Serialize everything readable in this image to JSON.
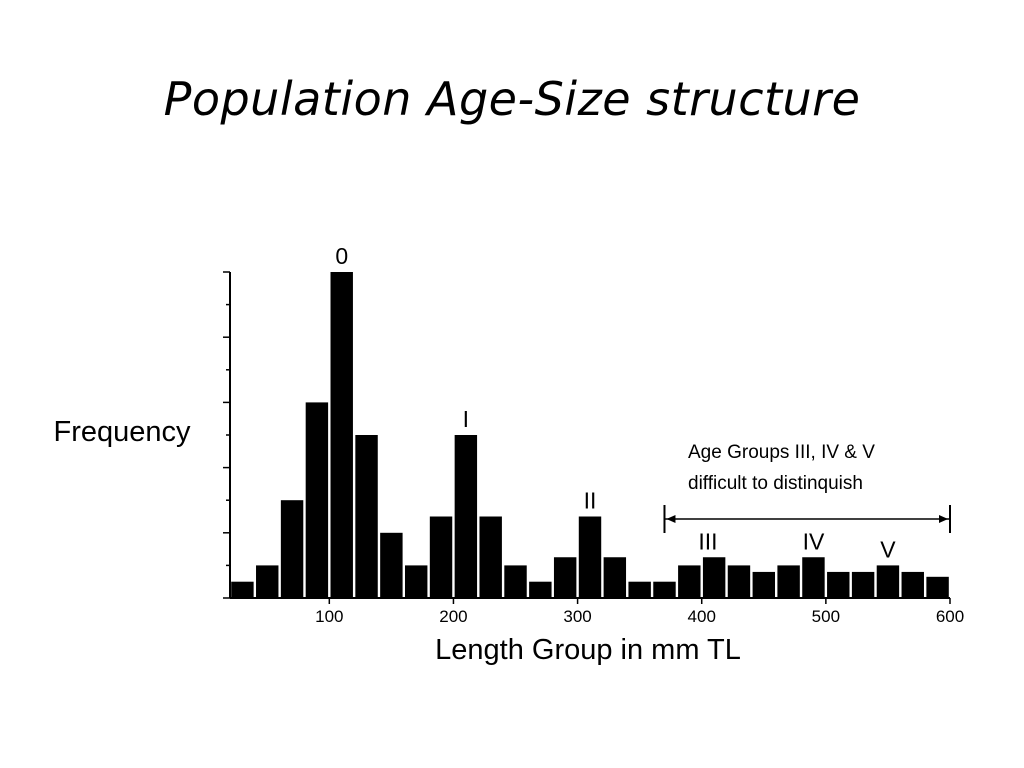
{
  "title": "Population Age-Size structure",
  "chart_data": {
    "type": "bar",
    "xlabel": "Length Group in mm TL",
    "ylabel": "Frequency",
    "xlim": [
      20,
      600
    ],
    "ylim": [
      0,
      20
    ],
    "x_ticks": [
      100,
      200,
      300,
      400,
      500,
      600
    ],
    "x": [
      30,
      50,
      70,
      90,
      110,
      130,
      150,
      170,
      190,
      210,
      230,
      250,
      270,
      290,
      310,
      330,
      350,
      370,
      390,
      410,
      430,
      450,
      470,
      490,
      510,
      530,
      550,
      570,
      590
    ],
    "values": [
      1,
      2,
      6,
      12,
      20,
      10,
      4,
      2,
      5,
      10,
      5,
      2,
      1,
      2.5,
      5,
      2.5,
      1,
      1,
      2,
      2.5,
      2,
      1.6,
      2,
      2.5,
      1.6,
      1.6,
      2,
      1.6,
      1.3
    ],
    "peak_labels": [
      {
        "text": "0",
        "x": 110
      },
      {
        "text": "I",
        "x": 210
      },
      {
        "text": "II",
        "x": 310
      },
      {
        "text": "III",
        "x": 405
      },
      {
        "text": "IV",
        "x": 490
      },
      {
        "text": "V",
        "x": 550
      }
    ],
    "annotation": {
      "line1": "Age Groups III, IV & V",
      "line2": "difficult to distinquish",
      "range": [
        370,
        600
      ]
    },
    "grid": false,
    "legend": "none"
  }
}
